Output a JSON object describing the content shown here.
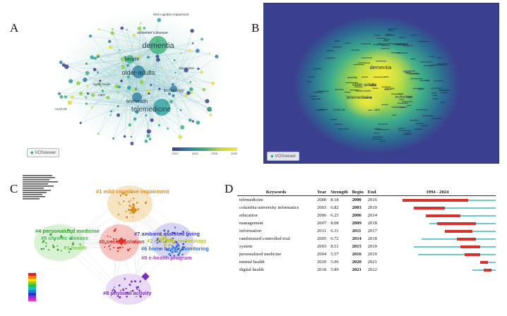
{
  "panels": {
    "a": "A",
    "b": "B",
    "c": "C",
    "d": "D"
  },
  "panel_a": {
    "labels": [
      "dementia",
      "older-adults",
      "telemedicine",
      "telehealth",
      "people",
      "technology",
      "care",
      "alzheimer's disease",
      "mild cognitive impairment",
      "covid-19",
      "digital health",
      "depression"
    ],
    "badge": "VOSviewer",
    "legend_ticks": [
      "2007",
      "2010",
      "2015",
      "2020"
    ]
  },
  "panel_b": {
    "labels": [
      "dementia",
      "older-adults",
      "telemedicine",
      "technology",
      "people",
      "care",
      "covid-19",
      "mild cognitive impairment",
      "health care",
      "mental health",
      "disability",
      "depression"
    ],
    "badge": "VOSviewer"
  },
  "panel_c": {
    "clusters": [
      {
        "label": "#1 mild cognitive impairment",
        "color": "#d98a1c"
      },
      {
        "label": "#4 personalized medicine",
        "color": "#2e9e2e"
      },
      {
        "label": "#5 chronic disease",
        "color": "#3bbf5a"
      },
      {
        "label": "#3 health",
        "color": "#7fd14f"
      },
      {
        "label": "#0 social isolation",
        "color": "#e0302a"
      },
      {
        "label": "#7 ambient assisted living",
        "color": "#3a3ad0"
      },
      {
        "label": "#2 assistive technology",
        "color": "#b8c020"
      },
      {
        "label": "#6 home health monitoring",
        "color": "#2a6fd0"
      },
      {
        "label": "#9 e-health program",
        "color": "#b040c0"
      },
      {
        "label": "#8 physical activity",
        "color": "#7a2fc0"
      }
    ]
  },
  "panel_d": {
    "headers": {
      "keywords": "Keywords",
      "year": "Year",
      "strength": "Strength",
      "begin": "Begin",
      "end": "End",
      "range": "1994 - 2024"
    },
    "range_start": 1994,
    "range_end": 2024,
    "rows": [
      {
        "keyword": "telemedicine",
        "year": "2000",
        "strength": "8.18",
        "begin": "2000",
        "end": "2016"
      },
      {
        "keyword": "columbia university informatics",
        "year": "2003",
        "strength": "6.82",
        "begin": "2003",
        "end": "2010"
      },
      {
        "keyword": "education",
        "year": "2006",
        "strength": "6.23",
        "begin": "2006",
        "end": "2014"
      },
      {
        "keyword": "management",
        "year": "2007",
        "strength": "8.08",
        "begin": "2009",
        "end": "2018"
      },
      {
        "keyword": "information",
        "year": "2011",
        "strength": "6.31",
        "begin": "2011",
        "end": "2017"
      },
      {
        "keyword": "randomized controlled trial",
        "year": "2005",
        "strength": "6.72",
        "begin": "2014",
        "end": "2018"
      },
      {
        "keyword": "system",
        "year": "2003",
        "strength": "8.51",
        "begin": "2015",
        "end": "2019"
      },
      {
        "keyword": "personalized medicine",
        "year": "2004",
        "strength": "5.57",
        "begin": "2016",
        "end": "2019"
      },
      {
        "keyword": "mental health",
        "year": "2020",
        "strength": "5.06",
        "begin": "2020",
        "end": "2021"
      },
      {
        "keyword": "digital health",
        "year": "2018",
        "strength": "5.89",
        "begin": "2021",
        "end": "2022"
      }
    ],
    "colors": {
      "burst": "#d9312b",
      "line": "#6cc9d2"
    }
  }
}
